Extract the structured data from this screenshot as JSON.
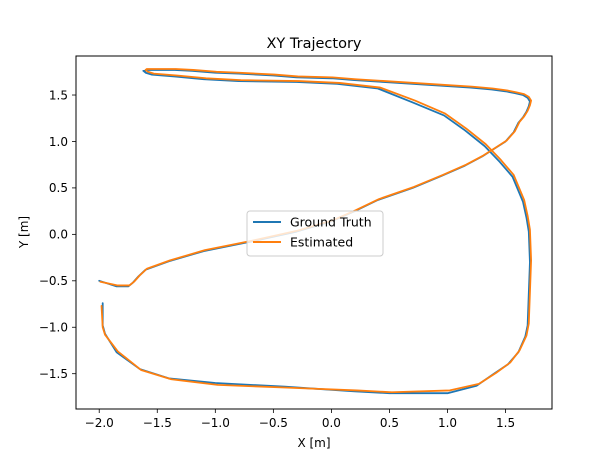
{
  "chart_data": {
    "type": "line",
    "title": "XY Trajectory",
    "xlabel": "X [m]",
    "ylabel": "Y [m]",
    "xlim": [
      -2.2,
      1.9
    ],
    "ylim": [
      -1.88,
      1.92
    ],
    "xticks": [
      -2.0,
      -1.5,
      -1.0,
      -0.5,
      0.0,
      0.5,
      1.0,
      1.5
    ],
    "xtick_labels": [
      "−2.0",
      "−1.5",
      "−1.0",
      "−0.5",
      "0.0",
      "0.5",
      "1.0",
      "1.5"
    ],
    "yticks": [
      -1.5,
      -1.0,
      -0.5,
      0.0,
      0.5,
      1.0,
      1.5
    ],
    "ytick_labels": [
      "−1.5",
      "−1.0",
      "−0.5",
      "0.0",
      "0.5",
      "1.0",
      "1.5"
    ],
    "grid": false,
    "legend_position": "center",
    "series": [
      {
        "name": "Ground Truth",
        "color": "#1f77b4",
        "x": [
          -1.97,
          -1.97,
          -1.95,
          -1.85,
          -1.65,
          -1.4,
          -1.0,
          -0.4,
          0.2,
          0.5,
          1.0,
          1.25,
          1.4,
          1.52,
          1.61,
          1.67,
          1.69,
          1.71,
          1.7,
          1.68,
          1.65,
          1.56,
          1.45,
          1.32,
          1.15,
          0.97,
          0.7,
          0.4,
          0.05,
          -0.3,
          -0.8,
          -1.1,
          -1.35,
          -1.55,
          -1.6,
          -1.62,
          -1.6,
          -1.6,
          -1.55,
          -1.48,
          -1.42,
          -1.35,
          -1.2,
          -1.0,
          -0.8,
          -0.5,
          -0.3,
          0.0,
          0.2,
          0.45,
          0.7,
          0.95,
          1.2,
          1.38,
          1.5,
          1.58,
          1.65,
          1.69,
          1.71,
          1.7,
          1.68,
          1.65,
          1.61,
          1.57,
          1.5,
          1.4,
          1.3,
          1.15,
          0.95,
          0.7,
          0.4,
          0.2,
          0.0,
          -0.3,
          -0.7,
          -1.1,
          -1.4,
          -1.6,
          -1.66,
          -1.71,
          -1.75,
          -1.85,
          -2.0
        ],
        "y": [
          -0.74,
          -0.98,
          -1.07,
          -1.27,
          -1.45,
          -1.55,
          -1.6,
          -1.64,
          -1.69,
          -1.71,
          -1.71,
          -1.63,
          -1.5,
          -1.4,
          -1.27,
          -1.1,
          -0.98,
          -0.3,
          0.03,
          0.18,
          0.35,
          0.62,
          0.78,
          0.95,
          1.12,
          1.28,
          1.42,
          1.57,
          1.62,
          1.64,
          1.65,
          1.67,
          1.7,
          1.72,
          1.74,
          1.76,
          1.76,
          1.77,
          1.77,
          1.77,
          1.77,
          1.77,
          1.76,
          1.74,
          1.73,
          1.71,
          1.69,
          1.68,
          1.66,
          1.64,
          1.62,
          1.6,
          1.58,
          1.56,
          1.54,
          1.52,
          1.5,
          1.47,
          1.43,
          1.38,
          1.32,
          1.26,
          1.2,
          1.1,
          1.0,
          0.92,
          0.84,
          0.74,
          0.63,
          0.5,
          0.37,
          0.25,
          0.14,
          0.03,
          -0.08,
          -0.18,
          -0.29,
          -0.38,
          -0.45,
          -0.52,
          -0.56,
          -0.56,
          -0.5
        ]
      },
      {
        "name": "Estimated",
        "color": "#ff7f0e",
        "x": [
          -1.98,
          -1.97,
          -1.95,
          -1.84,
          -1.64,
          -1.38,
          -0.98,
          -0.38,
          0.22,
          0.52,
          1.02,
          1.27,
          1.42,
          1.54,
          1.62,
          1.68,
          1.7,
          1.72,
          1.71,
          1.69,
          1.66,
          1.57,
          1.46,
          1.33,
          1.16,
          0.98,
          0.72,
          0.42,
          0.07,
          -0.28,
          -0.78,
          -1.08,
          -1.33,
          -1.53,
          -1.58,
          -1.6,
          -1.59,
          -1.59,
          -1.54,
          -1.47,
          -1.41,
          -1.34,
          -1.19,
          -0.99,
          -0.79,
          -0.49,
          -0.29,
          0.01,
          0.21,
          0.46,
          0.71,
          0.96,
          1.21,
          1.39,
          1.51,
          1.59,
          1.66,
          1.7,
          1.72,
          1.71,
          1.69,
          1.66,
          1.62,
          1.58,
          1.51,
          1.41,
          1.31,
          1.16,
          0.96,
          0.71,
          0.41,
          0.21,
          0.01,
          -0.29,
          -0.69,
          -1.09,
          -1.39,
          -1.59,
          -1.65,
          -1.7,
          -1.74,
          -1.84,
          -1.99
        ],
        "y": [
          -0.77,
          -1.0,
          -1.08,
          -1.26,
          -1.46,
          -1.56,
          -1.62,
          -1.65,
          -1.68,
          -1.7,
          -1.68,
          -1.61,
          -1.49,
          -1.38,
          -1.25,
          -1.09,
          -0.96,
          -0.28,
          0.05,
          0.2,
          0.37,
          0.64,
          0.8,
          0.97,
          1.14,
          1.3,
          1.44,
          1.58,
          1.63,
          1.65,
          1.66,
          1.68,
          1.71,
          1.73,
          1.75,
          1.77,
          1.78,
          1.78,
          1.78,
          1.78,
          1.78,
          1.78,
          1.77,
          1.75,
          1.74,
          1.72,
          1.7,
          1.69,
          1.67,
          1.65,
          1.63,
          1.61,
          1.59,
          1.57,
          1.55,
          1.53,
          1.51,
          1.48,
          1.44,
          1.39,
          1.33,
          1.27,
          1.21,
          1.11,
          1.01,
          0.93,
          0.85,
          0.75,
          0.64,
          0.51,
          0.38,
          0.26,
          0.15,
          0.04,
          -0.07,
          -0.17,
          -0.28,
          -0.37,
          -0.44,
          -0.51,
          -0.55,
          -0.55,
          -0.51
        ]
      }
    ]
  }
}
